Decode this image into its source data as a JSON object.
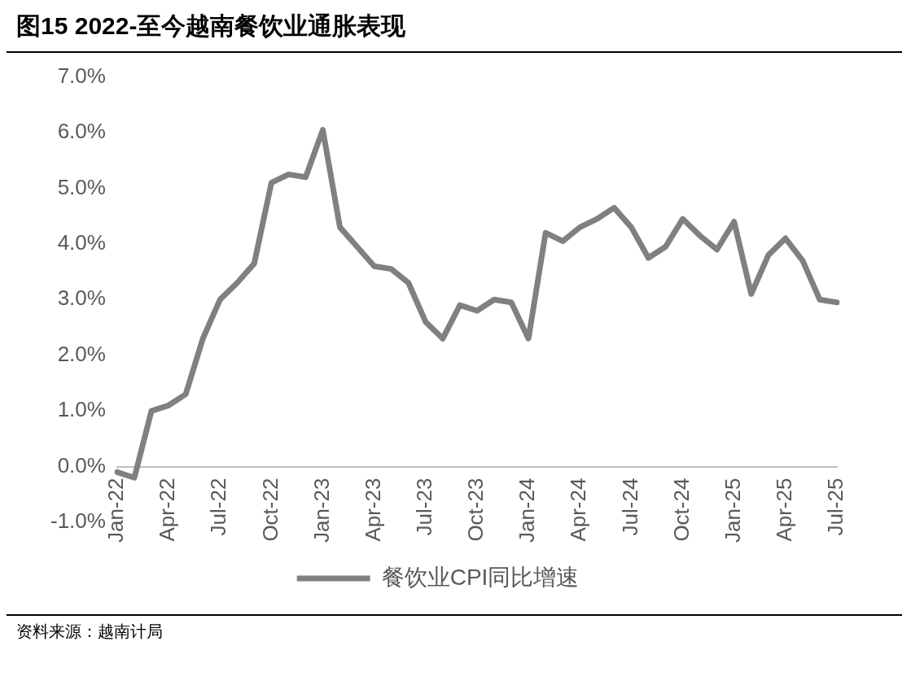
{
  "chart_data": {
    "type": "line",
    "title": "图15 2022-至今越南餐饮业通胀表现",
    "categories": [
      "Jan-22",
      null,
      null,
      "Apr-22",
      null,
      null,
      "Jul-22",
      null,
      null,
      "Oct-22",
      null,
      null,
      "Jan-23",
      null,
      null,
      "Apr-23",
      null,
      null,
      "Jul-23",
      null,
      null,
      "Oct-23",
      null,
      null,
      "Jan-24",
      null,
      null,
      "Apr-24",
      null,
      null,
      "Jul-24",
      null,
      null,
      "Oct-24",
      null,
      null,
      "Jan-25",
      null,
      null,
      "Apr-25",
      null,
      null,
      "Jul-25"
    ],
    "series": [
      {
        "name": "餐饮业CPI同比增速",
        "color": "#808080",
        "values": [
          -0.1,
          -0.2,
          1.0,
          1.1,
          1.3,
          2.3,
          3.0,
          3.3,
          3.65,
          5.1,
          5.25,
          5.2,
          6.05,
          4.3,
          3.95,
          3.6,
          3.55,
          3.3,
          2.6,
          2.3,
          2.9,
          2.8,
          3.0,
          2.95,
          2.3,
          4.2,
          4.05,
          4.3,
          4.45,
          4.65,
          4.3,
          3.75,
          3.95,
          4.45,
          4.15,
          3.9,
          4.4,
          3.1,
          3.8,
          4.1,
          3.7,
          3.0,
          2.95
        ]
      }
    ],
    "ylim": [
      -1,
      7
    ],
    "yticks": [
      {
        "value": -1,
        "label": "-1.0%"
      },
      {
        "value": 0,
        "label": "0.0%"
      },
      {
        "value": 1,
        "label": "1.0%"
      },
      {
        "value": 2,
        "label": "2.0%"
      },
      {
        "value": 3,
        "label": "3.0%"
      },
      {
        "value": 4,
        "label": "4.0%"
      },
      {
        "value": 5,
        "label": "5.0%"
      },
      {
        "value": 6,
        "label": "6.0%"
      },
      {
        "value": 7,
        "label": "7.0%"
      }
    ],
    "grid": false,
    "legend": "bottom",
    "marker": "none",
    "line_style": "solid",
    "annotations": [
      "资料来源：越南计局"
    ]
  }
}
